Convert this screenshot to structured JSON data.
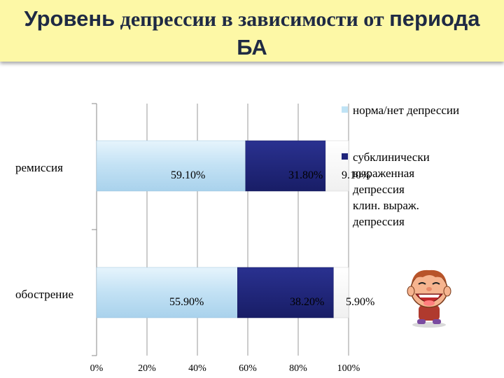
{
  "slide": {
    "title_part1": "Уровень",
    "title_part2": " депрессии в зависимости от ",
    "title_part3": "периода",
    "title_line2": "БА"
  },
  "chart_data": {
    "type": "bar",
    "orientation": "horizontal",
    "stacked": "percent",
    "categories": [
      "ремиссия",
      "обострение"
    ],
    "series": [
      {
        "name": "норма/нет депрессии",
        "values": [
          59.1,
          55.9
        ],
        "labels": [
          "59.10%",
          "55.90%"
        ],
        "color": "#bfe3f5"
      },
      {
        "name": "субклинически выраженная депрессия",
        "values": [
          31.8,
          38.2
        ],
        "labels": [
          "31.80%",
          "38.20%"
        ],
        "color": "#1e247a"
      },
      {
        "name": "клин. выраж. депрессия",
        "values": [
          9.1,
          5.9
        ],
        "labels": [
          "9.10%",
          "5.90%"
        ],
        "color": "#ffffff"
      }
    ],
    "xticks": [
      "0%",
      "20%",
      "40%",
      "60%",
      "80%",
      "100%"
    ],
    "xlim": [
      0,
      100
    ],
    "grid": true,
    "legend_position": "right",
    "legend_entries": [
      "норма/нет депрессии",
      "субклинически выраженная депрессия",
      "клин. выраж. депрессия"
    ]
  },
  "decor": {
    "mascot_icon": "laughing-boy-clipart-icon"
  }
}
